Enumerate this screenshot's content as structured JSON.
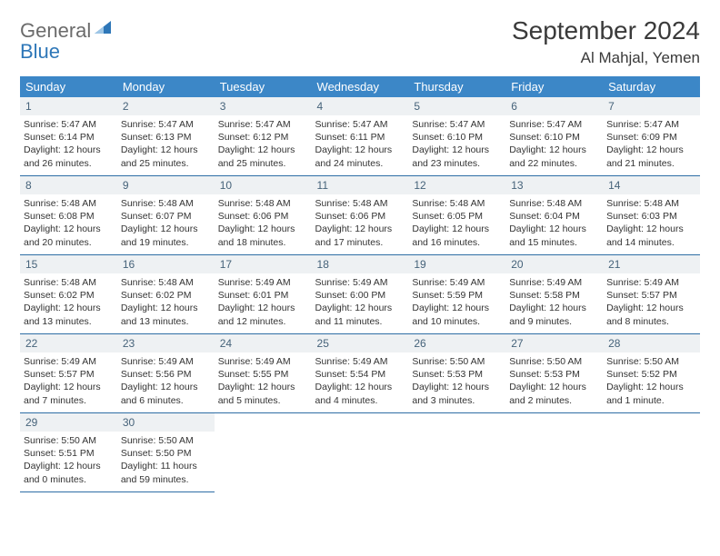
{
  "brand": {
    "name1": "General",
    "name2": "Blue"
  },
  "title": "September 2024",
  "location": "Al Mahjal, Yemen",
  "colors": {
    "header_bg": "#3c87c7",
    "header_text": "#ffffff",
    "daynum_bg": "#eef1f3",
    "daynum_text": "#46637a",
    "row_border": "#2e6ea5",
    "logo_gray": "#6b6b6b",
    "logo_blue": "#2e77b8"
  },
  "weekdays": [
    "Sunday",
    "Monday",
    "Tuesday",
    "Wednesday",
    "Thursday",
    "Friday",
    "Saturday"
  ],
  "weeks": [
    [
      {
        "d": "1",
        "sr": "Sunrise: 5:47 AM",
        "ss": "Sunset: 6:14 PM",
        "dl1": "Daylight: 12 hours",
        "dl2": "and 26 minutes."
      },
      {
        "d": "2",
        "sr": "Sunrise: 5:47 AM",
        "ss": "Sunset: 6:13 PM",
        "dl1": "Daylight: 12 hours",
        "dl2": "and 25 minutes."
      },
      {
        "d": "3",
        "sr": "Sunrise: 5:47 AM",
        "ss": "Sunset: 6:12 PM",
        "dl1": "Daylight: 12 hours",
        "dl2": "and 25 minutes."
      },
      {
        "d": "4",
        "sr": "Sunrise: 5:47 AM",
        "ss": "Sunset: 6:11 PM",
        "dl1": "Daylight: 12 hours",
        "dl2": "and 24 minutes."
      },
      {
        "d": "5",
        "sr": "Sunrise: 5:47 AM",
        "ss": "Sunset: 6:10 PM",
        "dl1": "Daylight: 12 hours",
        "dl2": "and 23 minutes."
      },
      {
        "d": "6",
        "sr": "Sunrise: 5:47 AM",
        "ss": "Sunset: 6:10 PM",
        "dl1": "Daylight: 12 hours",
        "dl2": "and 22 minutes."
      },
      {
        "d": "7",
        "sr": "Sunrise: 5:47 AM",
        "ss": "Sunset: 6:09 PM",
        "dl1": "Daylight: 12 hours",
        "dl2": "and 21 minutes."
      }
    ],
    [
      {
        "d": "8",
        "sr": "Sunrise: 5:48 AM",
        "ss": "Sunset: 6:08 PM",
        "dl1": "Daylight: 12 hours",
        "dl2": "and 20 minutes."
      },
      {
        "d": "9",
        "sr": "Sunrise: 5:48 AM",
        "ss": "Sunset: 6:07 PM",
        "dl1": "Daylight: 12 hours",
        "dl2": "and 19 minutes."
      },
      {
        "d": "10",
        "sr": "Sunrise: 5:48 AM",
        "ss": "Sunset: 6:06 PM",
        "dl1": "Daylight: 12 hours",
        "dl2": "and 18 minutes."
      },
      {
        "d": "11",
        "sr": "Sunrise: 5:48 AM",
        "ss": "Sunset: 6:06 PM",
        "dl1": "Daylight: 12 hours",
        "dl2": "and 17 minutes."
      },
      {
        "d": "12",
        "sr": "Sunrise: 5:48 AM",
        "ss": "Sunset: 6:05 PM",
        "dl1": "Daylight: 12 hours",
        "dl2": "and 16 minutes."
      },
      {
        "d": "13",
        "sr": "Sunrise: 5:48 AM",
        "ss": "Sunset: 6:04 PM",
        "dl1": "Daylight: 12 hours",
        "dl2": "and 15 minutes."
      },
      {
        "d": "14",
        "sr": "Sunrise: 5:48 AM",
        "ss": "Sunset: 6:03 PM",
        "dl1": "Daylight: 12 hours",
        "dl2": "and 14 minutes."
      }
    ],
    [
      {
        "d": "15",
        "sr": "Sunrise: 5:48 AM",
        "ss": "Sunset: 6:02 PM",
        "dl1": "Daylight: 12 hours",
        "dl2": "and 13 minutes."
      },
      {
        "d": "16",
        "sr": "Sunrise: 5:48 AM",
        "ss": "Sunset: 6:02 PM",
        "dl1": "Daylight: 12 hours",
        "dl2": "and 13 minutes."
      },
      {
        "d": "17",
        "sr": "Sunrise: 5:49 AM",
        "ss": "Sunset: 6:01 PM",
        "dl1": "Daylight: 12 hours",
        "dl2": "and 12 minutes."
      },
      {
        "d": "18",
        "sr": "Sunrise: 5:49 AM",
        "ss": "Sunset: 6:00 PM",
        "dl1": "Daylight: 12 hours",
        "dl2": "and 11 minutes."
      },
      {
        "d": "19",
        "sr": "Sunrise: 5:49 AM",
        "ss": "Sunset: 5:59 PM",
        "dl1": "Daylight: 12 hours",
        "dl2": "and 10 minutes."
      },
      {
        "d": "20",
        "sr": "Sunrise: 5:49 AM",
        "ss": "Sunset: 5:58 PM",
        "dl1": "Daylight: 12 hours",
        "dl2": "and 9 minutes."
      },
      {
        "d": "21",
        "sr": "Sunrise: 5:49 AM",
        "ss": "Sunset: 5:57 PM",
        "dl1": "Daylight: 12 hours",
        "dl2": "and 8 minutes."
      }
    ],
    [
      {
        "d": "22",
        "sr": "Sunrise: 5:49 AM",
        "ss": "Sunset: 5:57 PM",
        "dl1": "Daylight: 12 hours",
        "dl2": "and 7 minutes."
      },
      {
        "d": "23",
        "sr": "Sunrise: 5:49 AM",
        "ss": "Sunset: 5:56 PM",
        "dl1": "Daylight: 12 hours",
        "dl2": "and 6 minutes."
      },
      {
        "d": "24",
        "sr": "Sunrise: 5:49 AM",
        "ss": "Sunset: 5:55 PM",
        "dl1": "Daylight: 12 hours",
        "dl2": "and 5 minutes."
      },
      {
        "d": "25",
        "sr": "Sunrise: 5:49 AM",
        "ss": "Sunset: 5:54 PM",
        "dl1": "Daylight: 12 hours",
        "dl2": "and 4 minutes."
      },
      {
        "d": "26",
        "sr": "Sunrise: 5:50 AM",
        "ss": "Sunset: 5:53 PM",
        "dl1": "Daylight: 12 hours",
        "dl2": "and 3 minutes."
      },
      {
        "d": "27",
        "sr": "Sunrise: 5:50 AM",
        "ss": "Sunset: 5:53 PM",
        "dl1": "Daylight: 12 hours",
        "dl2": "and 2 minutes."
      },
      {
        "d": "28",
        "sr": "Sunrise: 5:50 AM",
        "ss": "Sunset: 5:52 PM",
        "dl1": "Daylight: 12 hours",
        "dl2": "and 1 minute."
      }
    ],
    [
      {
        "d": "29",
        "sr": "Sunrise: 5:50 AM",
        "ss": "Sunset: 5:51 PM",
        "dl1": "Daylight: 12 hours",
        "dl2": "and 0 minutes."
      },
      {
        "d": "30",
        "sr": "Sunrise: 5:50 AM",
        "ss": "Sunset: 5:50 PM",
        "dl1": "Daylight: 11 hours",
        "dl2": "and 59 minutes."
      },
      null,
      null,
      null,
      null,
      null
    ]
  ]
}
